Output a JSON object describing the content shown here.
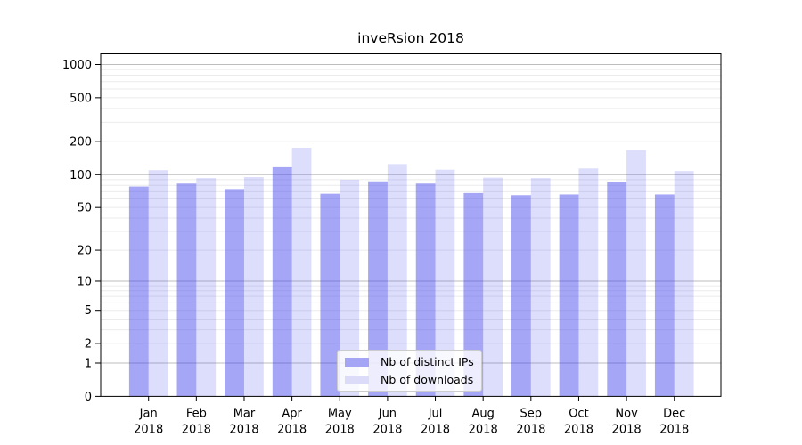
{
  "title": "inveRsion 2018",
  "chart_data": {
    "type": "bar",
    "title": "inveRsion 2018",
    "months": [
      "Jan",
      "Feb",
      "Mar",
      "Apr",
      "May",
      "Jun",
      "Jul",
      "Aug",
      "Sep",
      "Oct",
      "Nov",
      "Dec"
    ],
    "year": "2018",
    "categories": [
      "Jan 2018",
      "Feb 2018",
      "Mar 2018",
      "Apr 2018",
      "May 2018",
      "Jun 2018",
      "Jul 2018",
      "Aug 2018",
      "Sep 2018",
      "Oct 2018",
      "Nov 2018",
      "Dec 2018"
    ],
    "series": [
      {
        "name": "Nb of distinct IPs",
        "color": "rgba(68,68,238,0.48)",
        "legend_color": "#a5a5f6",
        "values": [
          78,
          83,
          74,
          117,
          67,
          87,
          83,
          68,
          65,
          66,
          86,
          66
        ]
      },
      {
        "name": "Nb of downloads",
        "color": "rgba(68,68,238,0.18)",
        "legend_color": "#dcdcf8",
        "values": [
          110,
          93,
          95,
          176,
          90,
          125,
          111,
          94,
          93,
          114,
          168,
          108
        ]
      }
    ],
    "y_scale": "log1p",
    "ylim": [
      0,
      1240
    ],
    "y_ticks": [
      0,
      1,
      2,
      5,
      10,
      20,
      50,
      100,
      200,
      500,
      1000
    ],
    "y_gridlines_major": [
      1,
      10,
      100,
      1000
    ],
    "y_gridlines_minor": [
      2,
      3,
      4,
      5,
      6,
      7,
      8,
      9,
      20,
      30,
      40,
      50,
      60,
      70,
      80,
      90,
      200,
      300,
      400,
      500,
      600,
      700,
      800,
      900
    ],
    "grid_major_color": "#bdbdbd",
    "grid_minor_color": "#ebebeb",
    "axis_color": "#000000",
    "legend_position": "lower center",
    "grid": "on",
    "xlabel": "",
    "ylabel": ""
  }
}
